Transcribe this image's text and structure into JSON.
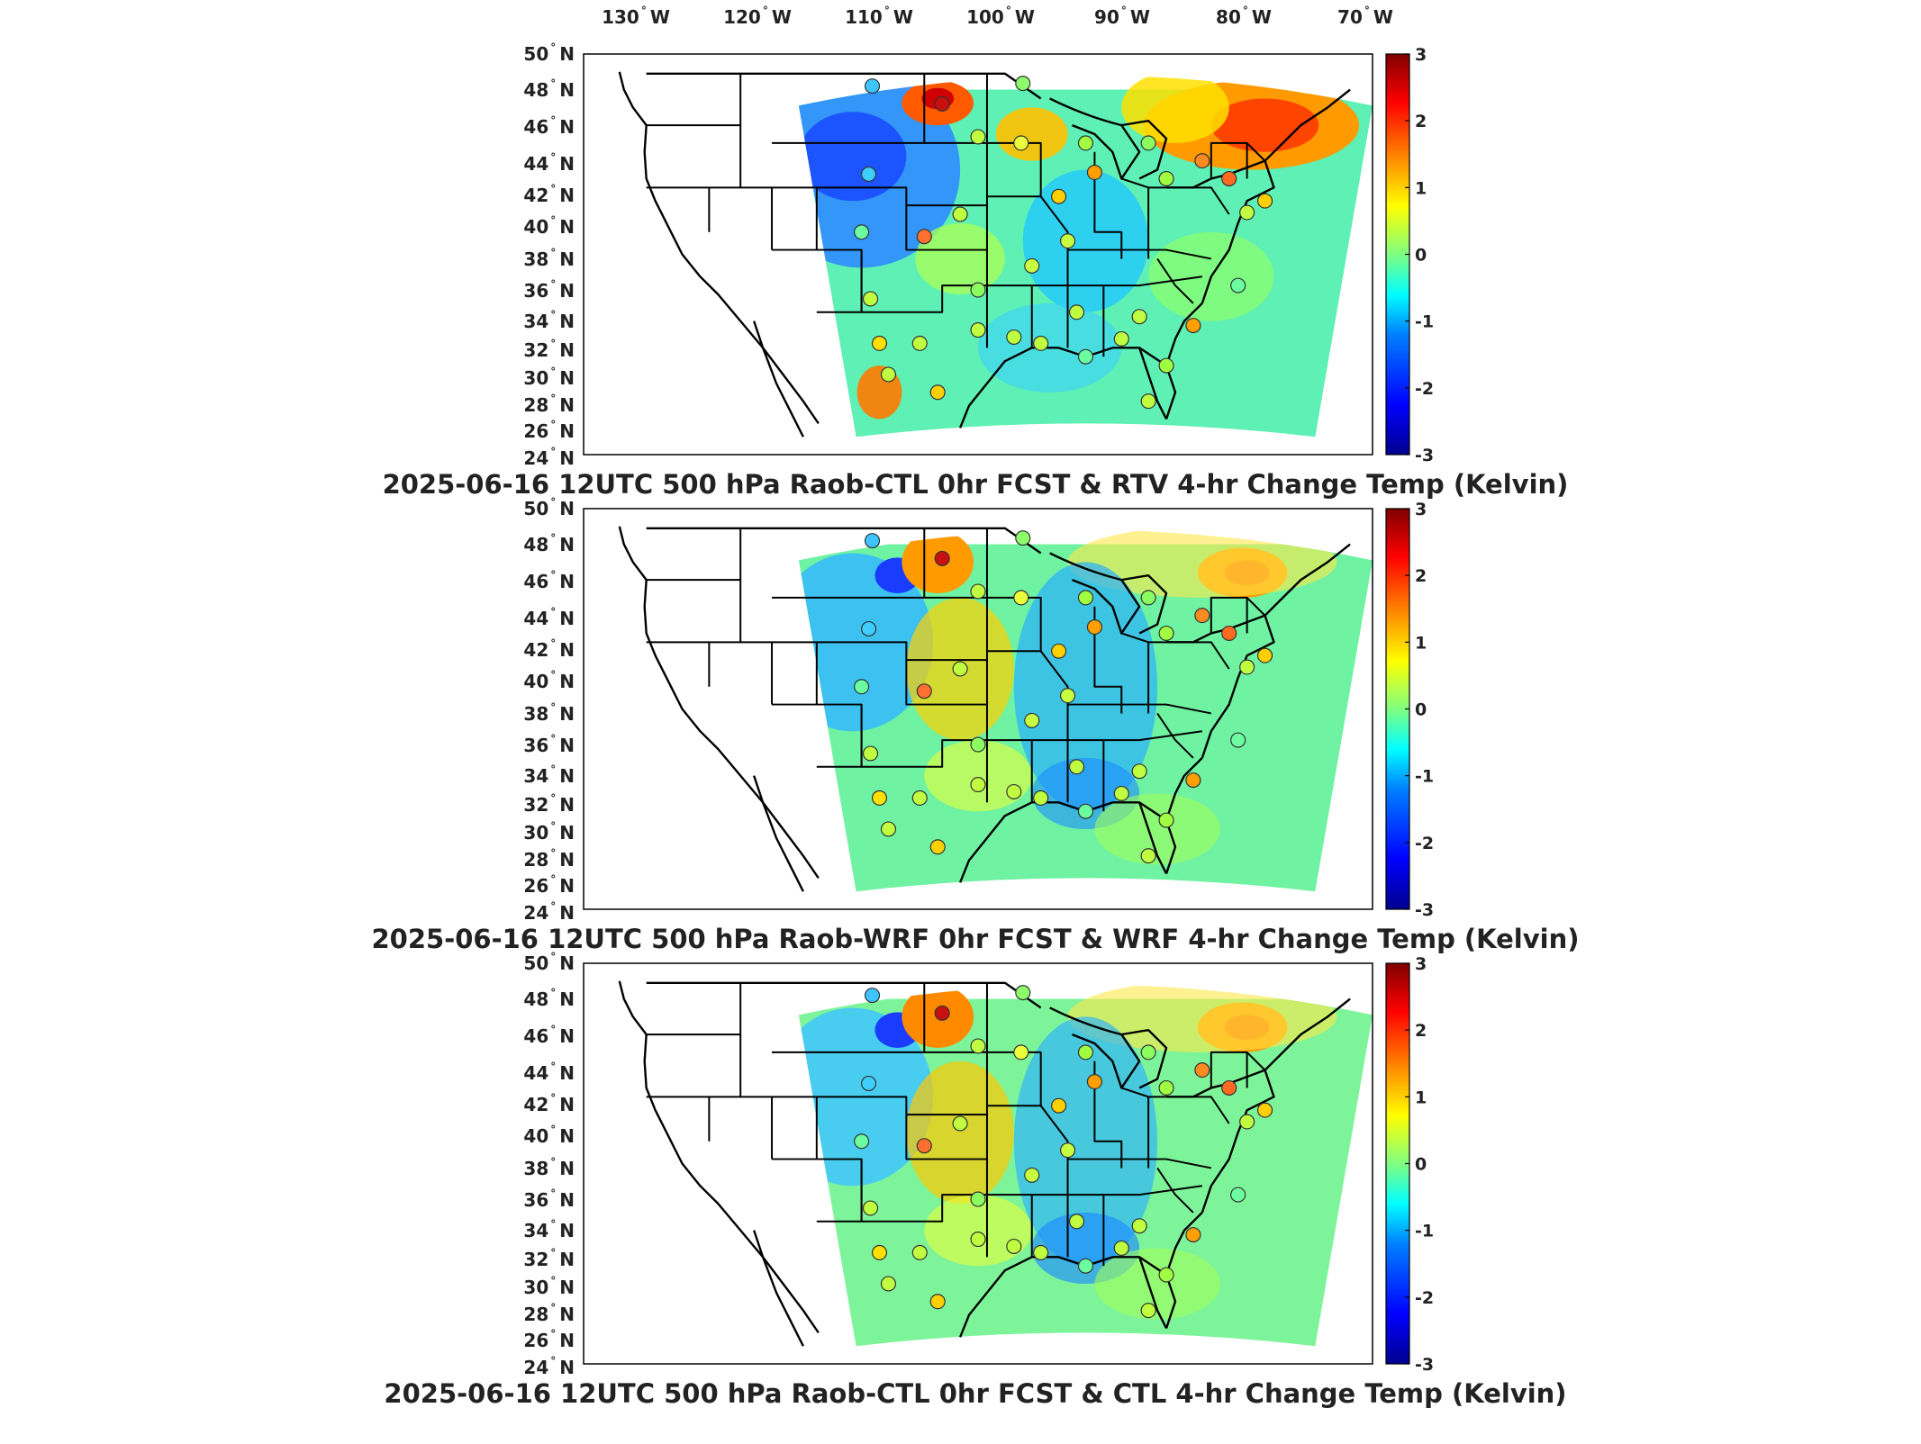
{
  "lon_labels": [
    "130",
    "120",
    "110",
    "100",
    "90",
    "80",
    "70"
  ],
  "lon_suffix": "W",
  "lat_labels": [
    "50",
    "48",
    "46",
    "44",
    "42",
    "40",
    "38",
    "36",
    "34",
    "32",
    "30",
    "28",
    "26",
    "24"
  ],
  "lat_suffix": "N",
  "degree_symbol": "°",
  "colorbar": {
    "ticks": [
      "3",
      "2",
      "1",
      "0",
      "-1",
      "-2",
      "-3"
    ],
    "colormap": [
      "#00008f",
      "#0000ff",
      "#0080ff",
      "#00ffff",
      "#80ff80",
      "#ffff00",
      "#ff8000",
      "#ff0000",
      "#800000"
    ]
  },
  "panels": [
    {
      "title": "2025-06-16 12UTC 500 hPa Raob-CTL 0hr FCST & RTV 4-hr Change Temp (Kelvin)",
      "field": "RTV"
    },
    {
      "title": "2025-06-16 12UTC 500 hPa Raob-WRF 0hr FCST & WRF 4-hr Change Temp (Kelvin)",
      "field": "WRF"
    },
    {
      "title": "2025-06-16 12UTC 500 hPa Raob-CTL 0hr FCST & CTL 4-hr Change Temp (Kelvin)",
      "field": "CTL"
    }
  ]
}
